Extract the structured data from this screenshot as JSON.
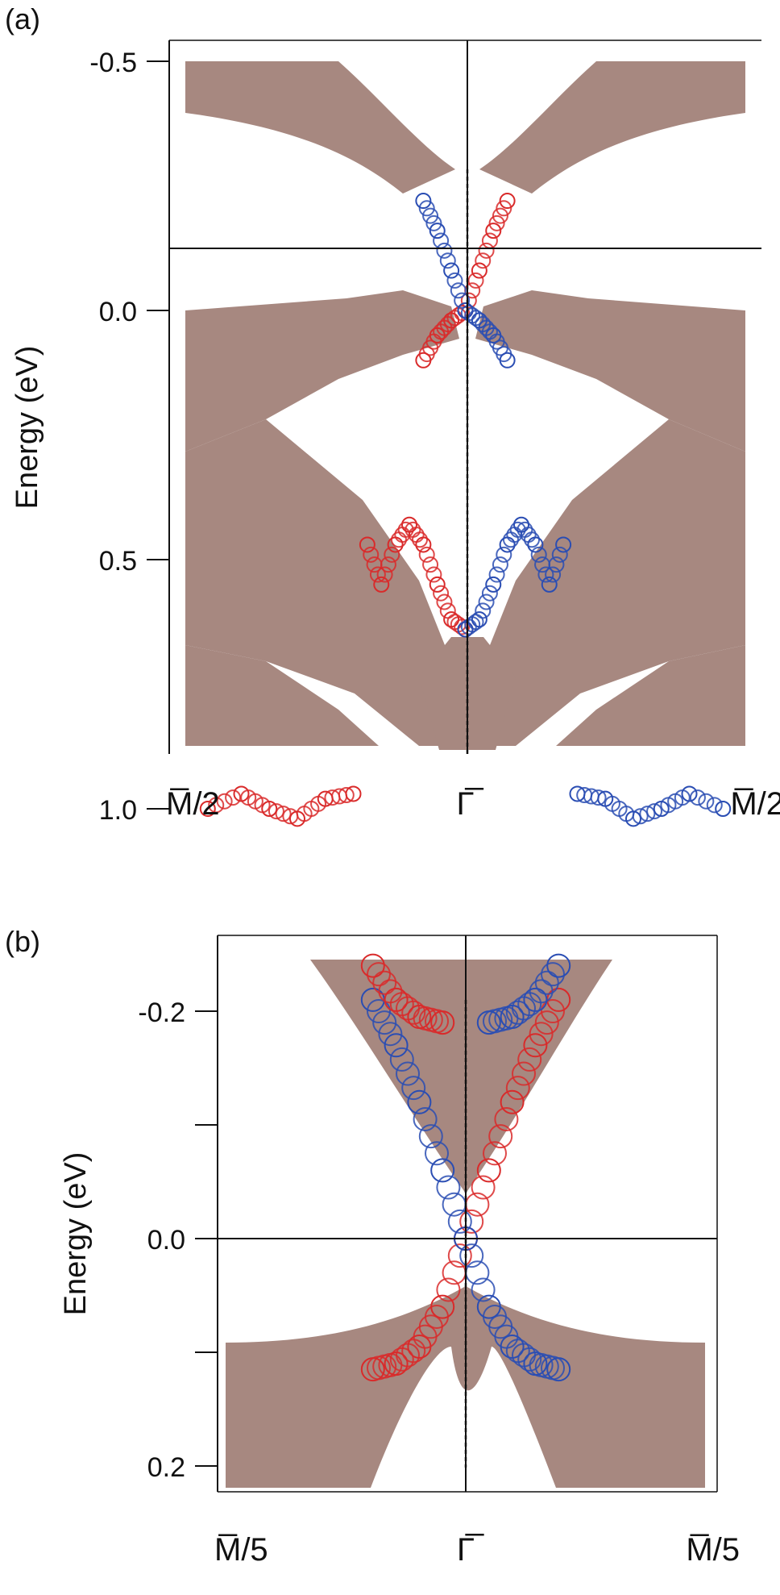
{
  "figure": {
    "band_color": "#a78880",
    "spin_up_color": "#d92a2a",
    "spin_down_color": "#2a4db3"
  },
  "chart_data": [
    {
      "panel": "(a)",
      "type": "scatter",
      "title": "",
      "xlabel": "",
      "ylabel": "Energy (eV)",
      "x_ticks": [
        {
          "x": -1,
          "label": "M̅/2"
        },
        {
          "x": 0,
          "label": "Γ̅"
        },
        {
          "x": 1,
          "label": "M̅/2"
        }
      ],
      "xlim": [
        -1,
        1
      ],
      "ylim": [
        1.35,
        -0.55
      ],
      "y_ticks": [
        {
          "y": -0.5,
          "label": "-0.5"
        },
        {
          "y": 0.0,
          "label": "0.0"
        },
        {
          "y": 0.5,
          "label": "0.5"
        },
        {
          "y": 1.0,
          "label": "1.0"
        }
      ],
      "y_axis_inverted": true,
      "reference_lines": {
        "horizontal_y": 0.0,
        "vertical_x": 0.0
      },
      "series": [
        {
          "x": [
            -0.15,
            -0.1,
            -0.05,
            0.0,
            0.05,
            0.1,
            0.15
          ],
          "y": [
            0.1,
            0.05,
            0.02,
            0.0,
            -0.08,
            -0.16,
            -0.22
          ]
        },
        {
          "x": [
            -0.15,
            -0.1,
            -0.05,
            0.0,
            0.05,
            0.1,
            0.15
          ],
          "y": [
            -0.22,
            -0.16,
            -0.08,
            0.0,
            0.02,
            0.05,
            0.1
          ]
        },
        {
          "x": [
            -0.35,
            -0.3,
            -0.25,
            -0.2,
            -0.15,
            -0.1,
            -0.05,
            0.0
          ],
          "y": [
            0.47,
            0.55,
            0.47,
            0.43,
            0.47,
            0.55,
            0.62,
            0.64
          ]
        },
        {
          "x": [
            0.0,
            0.05,
            0.1,
            0.15,
            0.2,
            0.25,
            0.3,
            0.35
          ],
          "y": [
            0.64,
            0.62,
            0.55,
            0.47,
            0.43,
            0.47,
            0.55,
            0.47
          ]
        },
        {
          "x": [
            -0.92,
            -0.8,
            -0.7,
            -0.6,
            -0.5,
            -0.4
          ],
          "y": [
            1.0,
            0.97,
            1.0,
            1.02,
            0.98,
            0.97
          ]
        },
        {
          "x": [
            0.4,
            0.5,
            0.6,
            0.7,
            0.8,
            0.92
          ],
          "y": [
            0.97,
            0.98,
            1.02,
            1.0,
            0.97,
            1.0
          ]
        }
      ]
    },
    {
      "panel": "(b)",
      "type": "scatter",
      "title": "",
      "xlabel": "",
      "ylabel": "Energy (eV)",
      "x_ticks": [
        {
          "x": -1,
          "label": "M̅/5"
        },
        {
          "x": 0,
          "label": "Γ̅"
        },
        {
          "x": 1,
          "label": "M̅/5"
        }
      ],
      "xlim": [
        -1,
        1
      ],
      "ylim": [
        0.265,
        -0.26
      ],
      "y_ticks": [
        {
          "y": -0.2,
          "label": "-0.2"
        },
        {
          "y": -0.1,
          "label": ""
        },
        {
          "y": 0.0,
          "label": "0.0"
        },
        {
          "y": 0.1,
          "label": ""
        },
        {
          "y": 0.2,
          "label": "0.2"
        }
      ],
      "y_axis_inverted": true,
      "reference_lines": {
        "horizontal_y": 0.0,
        "vertical_x": 0.0
      },
      "series": [
        {
          "x": [
            -0.4,
            -0.3,
            -0.2,
            -0.1,
            0.0,
            0.1,
            0.2,
            0.3,
            0.4
          ],
          "y": [
            0.115,
            0.11,
            0.095,
            0.06,
            0.0,
            -0.06,
            -0.12,
            -0.17,
            -0.21
          ]
        },
        {
          "x": [
            -0.4,
            -0.3,
            -0.2,
            -0.1,
            0.0,
            0.1,
            0.2,
            0.3,
            0.4
          ],
          "y": [
            -0.21,
            -0.17,
            -0.12,
            -0.06,
            0.0,
            0.06,
            0.095,
            0.11,
            0.115
          ]
        },
        {
          "x": [
            -0.4,
            -0.3,
            -0.2,
            -0.1
          ],
          "y": [
            -0.24,
            -0.21,
            -0.195,
            -0.19
          ]
        },
        {
          "x": [
            0.1,
            0.2,
            0.3,
            0.4
          ],
          "y": [
            -0.19,
            -0.195,
            -0.21,
            -0.24
          ]
        }
      ]
    }
  ]
}
